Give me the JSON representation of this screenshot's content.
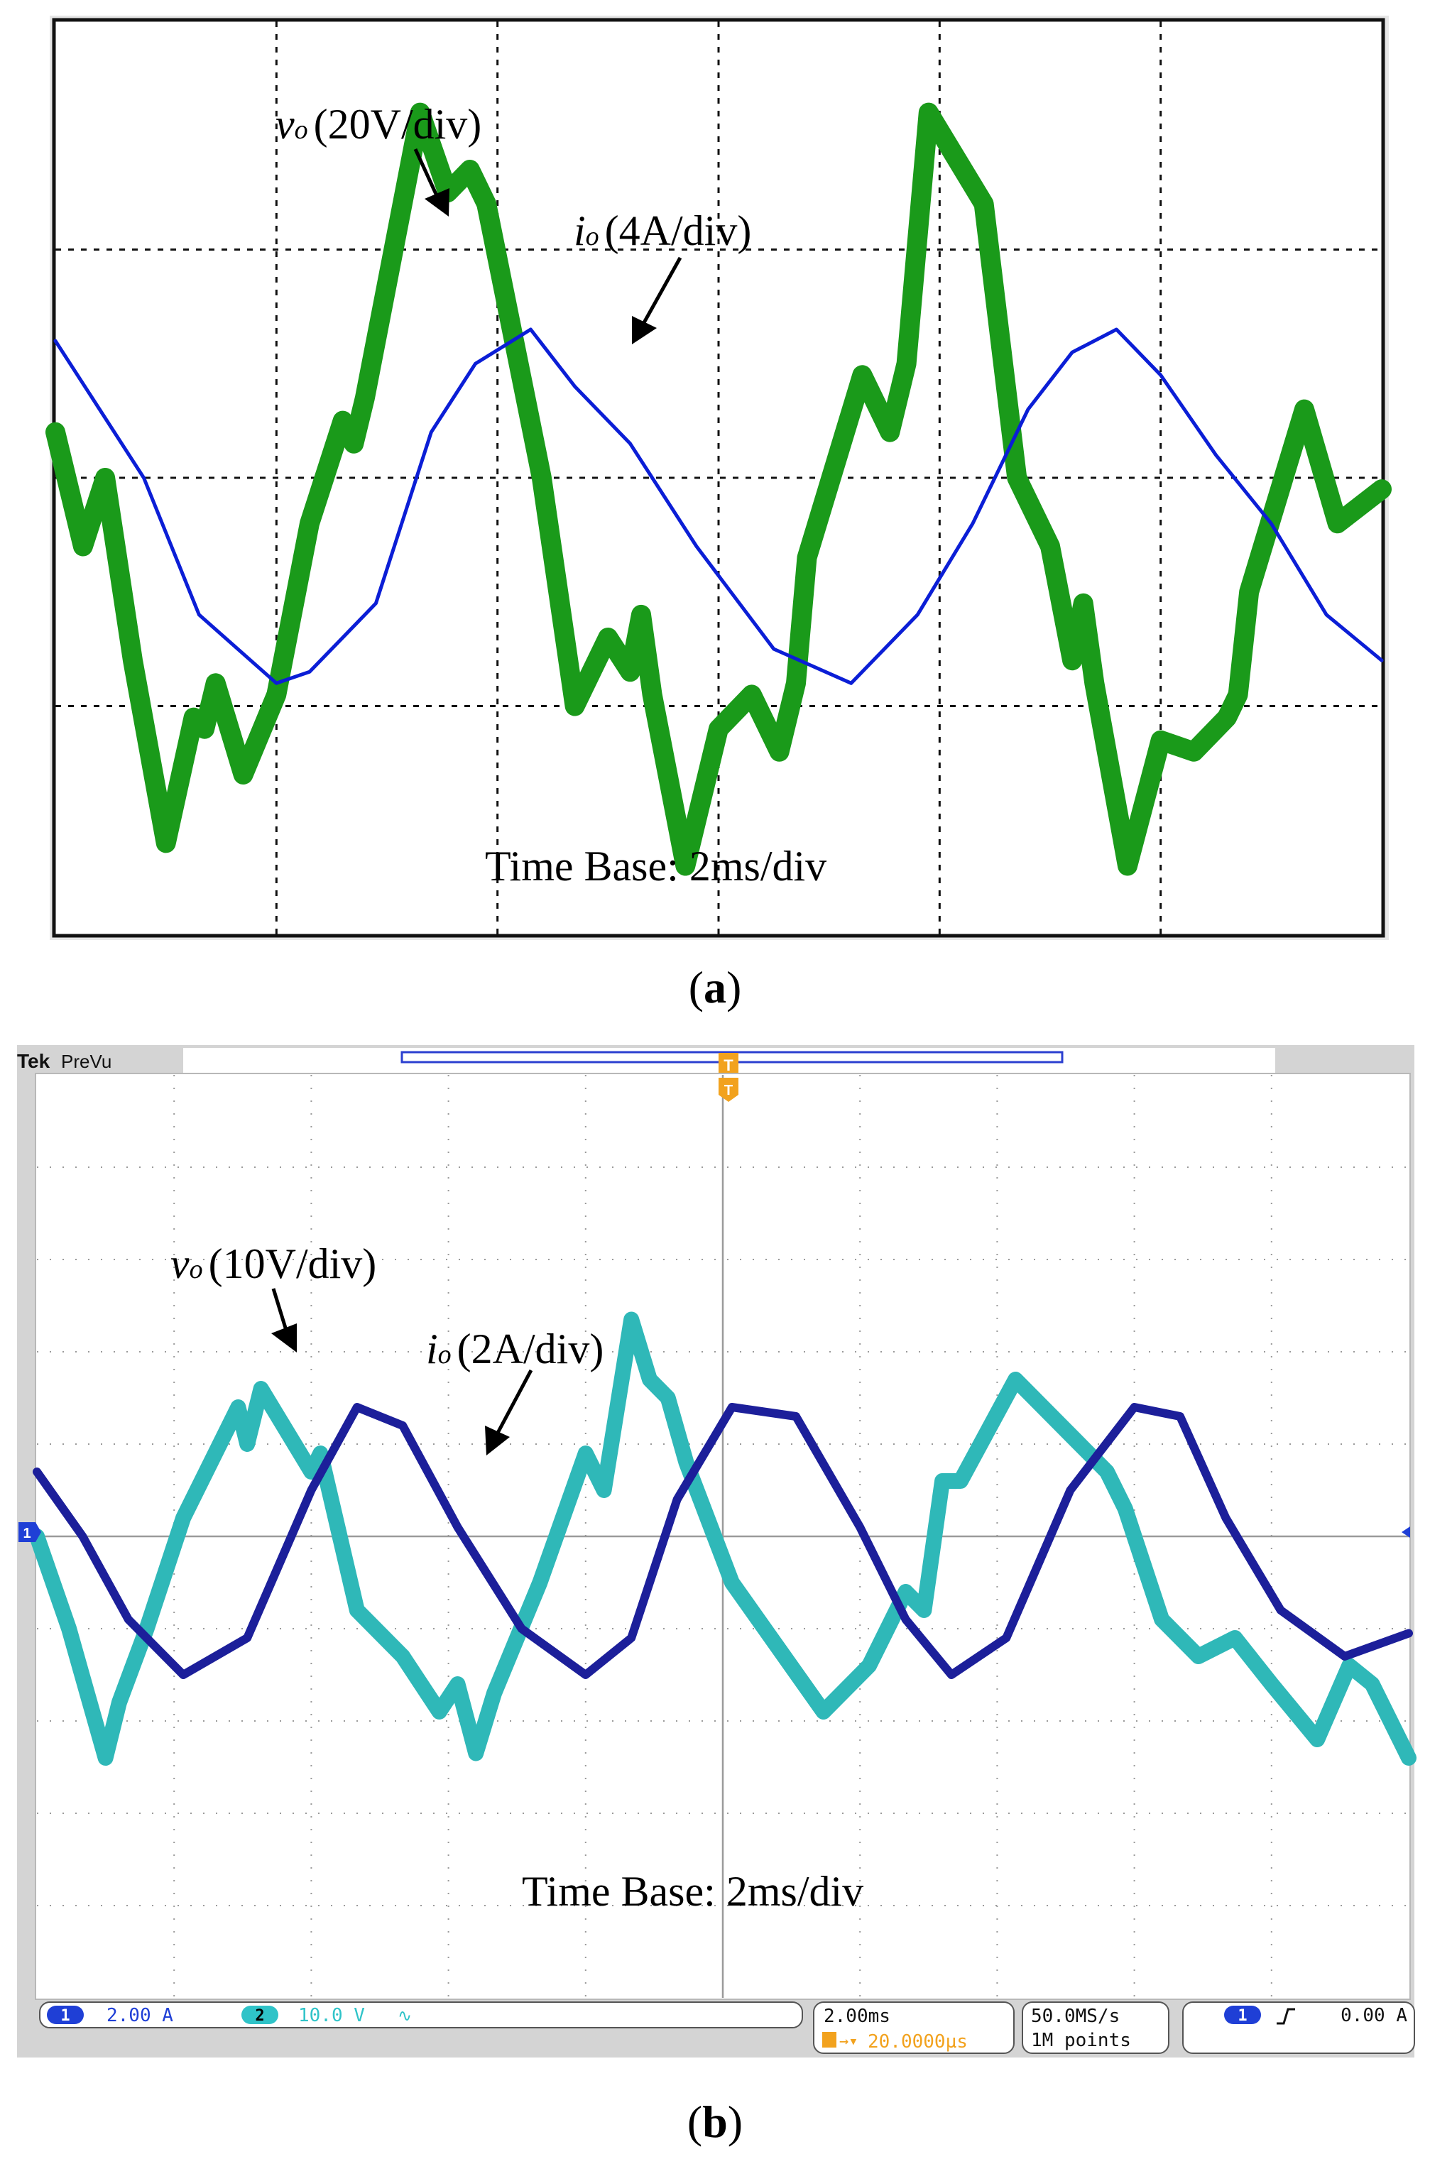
{
  "chart_data": [
    {
      "type": "line",
      "panel_label": "a",
      "annotations": {
        "voltage_label": "v",
        "voltage_sub": "o",
        "voltage_scale": "(20V/div)",
        "current_label": "i",
        "current_sub": "o",
        "current_scale": "(4A/div)",
        "time_base": "Time Base: 2ms/div"
      },
      "xlim": [
        0,
        12
      ],
      "ylim": [
        -2,
        2
      ],
      "grid": true,
      "colors": {
        "voltage": "#1a9a1a",
        "current": "#0b1ed6"
      },
      "series": [
        {
          "name": "vo (20V/div)",
          "x": [
            0.0,
            0.25,
            0.35,
            0.45,
            0.7,
            1.0,
            1.25,
            1.35,
            1.45,
            1.7,
            2.0,
            2.3,
            2.6,
            2.7,
            2.8,
            3.3,
            3.55,
            3.75,
            3.9,
            4.4,
            4.7,
            5.0,
            5.2,
            5.3,
            5.4,
            5.7,
            6.0,
            6.3,
            6.55,
            6.7,
            6.8,
            7.3,
            7.55,
            7.7,
            7.9,
            8.4,
            8.7,
            9.0,
            9.2,
            9.3,
            9.4,
            9.7,
            10.0,
            10.3,
            10.6,
            10.7,
            10.8,
            11.3,
            11.6,
            12.0
          ],
          "y": [
            0.2,
            -0.3,
            -0.15,
            0.0,
            -0.8,
            -1.6,
            -1.05,
            -1.1,
            -0.9,
            -1.3,
            -0.95,
            -0.2,
            0.25,
            0.15,
            0.35,
            1.6,
            1.25,
            1.35,
            1.2,
            0.0,
            -1.0,
            -0.7,
            -0.85,
            -0.6,
            -0.95,
            -1.7,
            -1.1,
            -0.95,
            -1.2,
            -0.9,
            -0.35,
            0.45,
            0.2,
            0.5,
            1.6,
            1.2,
            0.0,
            -0.3,
            -0.8,
            -0.55,
            -0.9,
            -1.7,
            -1.15,
            -1.2,
            -1.05,
            -0.95,
            -0.5,
            0.3,
            -0.2,
            -0.05
          ]
        },
        {
          "name": "io (4A/div)",
          "x": [
            0.0,
            0.4,
            0.8,
            1.3,
            2.0,
            2.3,
            2.9,
            3.4,
            3.8,
            4.3,
            4.7,
            5.2,
            5.8,
            6.5,
            7.2,
            7.8,
            8.3,
            8.8,
            9.2,
            9.6,
            10.0,
            10.5,
            11.0,
            11.5,
            12.0
          ],
          "y": [
            0.6,
            0.3,
            0.0,
            -0.6,
            -0.9,
            -0.85,
            -0.55,
            0.2,
            0.5,
            0.65,
            0.4,
            0.15,
            -0.3,
            -0.75,
            -0.9,
            -0.6,
            -0.2,
            0.3,
            0.55,
            0.65,
            0.45,
            0.1,
            -0.2,
            -0.6,
            -0.8
          ]
        }
      ]
    },
    {
      "type": "line",
      "panel_label": "b",
      "oscilloscope": {
        "brand": "Tek",
        "mode": "PreVu",
        "ch1_scale": "2.00 A",
        "ch2_scale": "10.0 V",
        "ch2_coupling": "∿",
        "timebase": "2.00ms",
        "trigger_offset": "20.0000µs",
        "sample_rate": "50.0MS/s",
        "record_length": "1M points",
        "trigger_level": "0.00 A",
        "ch1_marker": "1",
        "ch2_marker": "2",
        "trigger_marker": "T"
      },
      "annotations": {
        "voltage_label": "v",
        "voltage_sub": "o",
        "voltage_scale": "(10V/div)",
        "current_label": "i",
        "current_sub": "o",
        "current_scale": "(2A/div)",
        "time_base": "Time Base: 2ms/div"
      },
      "xlim": [
        0,
        15
      ],
      "ylim": [
        -5,
        5
      ],
      "grid": true,
      "colors": {
        "voltage": "#2fb8b8",
        "current": "#1c1f9a"
      },
      "series": [
        {
          "name": "vo (10V/div)",
          "x": [
            0.0,
            0.35,
            0.55,
            0.75,
            0.9,
            1.2,
            1.6,
            2.2,
            2.3,
            2.45,
            3.0,
            3.1,
            3.5,
            4.0,
            4.4,
            4.6,
            4.8,
            5.0,
            5.5,
            6.0,
            6.2,
            6.5,
            6.7,
            6.9,
            7.1,
            7.6,
            8.1,
            8.6,
            9.1,
            9.5,
            9.7,
            9.9,
            10.1,
            10.7,
            11.2,
            11.7,
            11.9,
            12.3,
            12.7,
            13.1,
            13.5,
            14.0,
            14.35,
            14.6,
            15.0
          ],
          "y": [
            0.0,
            -1.0,
            -1.7,
            -2.4,
            -1.8,
            -1.0,
            0.2,
            1.4,
            1.0,
            1.6,
            0.7,
            0.9,
            -0.8,
            -1.3,
            -1.9,
            -1.6,
            -2.35,
            -1.7,
            -0.5,
            0.9,
            0.5,
            2.35,
            1.7,
            1.5,
            0.8,
            -0.5,
            -1.2,
            -1.9,
            -1.4,
            -0.6,
            -0.8,
            0.6,
            0.6,
            1.7,
            1.2,
            0.7,
            0.3,
            -0.9,
            -1.3,
            -1.1,
            -1.6,
            -2.2,
            -1.4,
            -1.6,
            -2.4
          ]
        },
        {
          "name": "io (2A/div)",
          "x": [
            0.0,
            0.5,
            1.0,
            1.6,
            2.3,
            3.0,
            3.5,
            4.0,
            4.6,
            5.3,
            6.0,
            6.5,
            7.0,
            7.6,
            8.3,
            9.0,
            9.5,
            10.0,
            10.6,
            11.3,
            12.0,
            12.5,
            13.0,
            13.6,
            14.3,
            15.0
          ],
          "y": [
            0.7,
            0.0,
            -0.9,
            -1.5,
            -1.1,
            0.5,
            1.4,
            1.2,
            0.1,
            -1.0,
            -1.5,
            -1.1,
            0.4,
            1.4,
            1.3,
            0.1,
            -0.9,
            -1.5,
            -1.1,
            0.5,
            1.4,
            1.3,
            0.2,
            -0.8,
            -1.3,
            -1.05
          ]
        }
      ]
    }
  ]
}
